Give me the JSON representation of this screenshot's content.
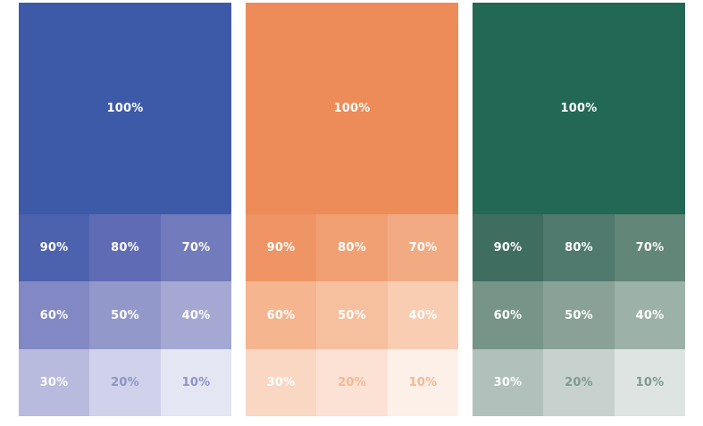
{
  "palettes": [
    {
      "name": "blue",
      "base_color": "#3D5AA8",
      "main_label": "100%",
      "tints": [
        {
          "label": "90%",
          "color": "#4D62AF",
          "text_color": "#FFFFFF"
        },
        {
          "label": "80%",
          "color": "#5F6CB5",
          "text_color": "#FFFFFF"
        },
        {
          "label": "70%",
          "color": "#727BBB",
          "text_color": "#FFFFFF"
        },
        {
          "label": "60%",
          "color": "#8288C3",
          "text_color": "#FFFFFF"
        },
        {
          "label": "50%",
          "color": "#9398CA",
          "text_color": "#FFFFFF"
        },
        {
          "label": "40%",
          "color": "#A4A8D3",
          "text_color": "#FFFFFF"
        },
        {
          "label": "30%",
          "color": "#B8BBDD",
          "text_color": "#FFFFFF"
        },
        {
          "label": "20%",
          "color": "#D0D1EA",
          "text_color": "#8E93C7"
        },
        {
          "label": "10%",
          "color": "#E5E6F3",
          "text_color": "#8E93C7"
        }
      ]
    },
    {
      "name": "orange",
      "base_color": "#ED8C58",
      "main_label": "100%",
      "tints": [
        {
          "label": "90%",
          "color": "#EF9565",
          "text_color": "#FFFFFF"
        },
        {
          "label": "80%",
          "color": "#F0A072",
          "text_color": "#FFFFFF"
        },
        {
          "label": "70%",
          "color": "#F2AA83",
          "text_color": "#FFFFFF"
        },
        {
          "label": "60%",
          "color": "#F4B58F",
          "text_color": "#FFFFFF"
        },
        {
          "label": "50%",
          "color": "#F6C09F",
          "text_color": "#FFFFFF"
        },
        {
          "label": "40%",
          "color": "#F8CDB2",
          "text_color": "#FFFFFF"
        },
        {
          "label": "30%",
          "color": "#F9D7C2",
          "text_color": "#FFFFFF"
        },
        {
          "label": "20%",
          "color": "#FBE2D4",
          "text_color": "#F5B792"
        },
        {
          "label": "10%",
          "color": "#FDF0E8",
          "text_color": "#F5B792"
        }
      ]
    },
    {
      "name": "green",
      "base_color": "#236854",
      "main_label": "100%",
      "tints": [
        {
          "label": "90%",
          "color": "#3F6D60",
          "text_color": "#FFFFFF"
        },
        {
          "label": "80%",
          "color": "#4F7A6D",
          "text_color": "#FFFFFF"
        },
        {
          "label": "70%",
          "color": "#628778",
          "text_color": "#FFFFFF"
        },
        {
          "label": "60%",
          "color": "#769488",
          "text_color": "#FFFFFF"
        },
        {
          "label": "50%",
          "color": "#89A197",
          "text_color": "#FFFFFF"
        },
        {
          "label": "40%",
          "color": "#9CB1A8",
          "text_color": "#FFFFFF"
        },
        {
          "label": "30%",
          "color": "#B1C0BA",
          "text_color": "#FFFFFF"
        },
        {
          "label": "20%",
          "color": "#C7D2CE",
          "text_color": "#7E9A90"
        },
        {
          "label": "10%",
          "color": "#DDE4E1",
          "text_color": "#7E9A90"
        }
      ]
    }
  ]
}
